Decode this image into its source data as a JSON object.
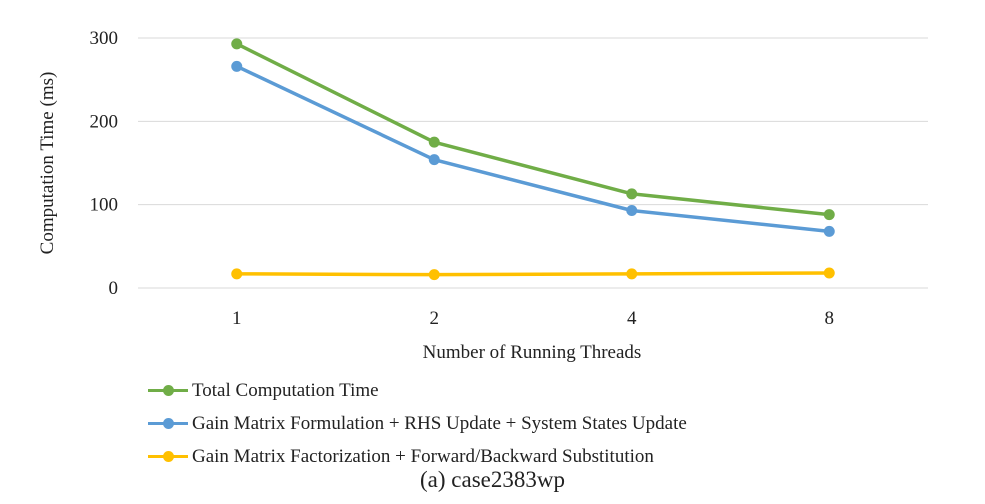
{
  "chart_data": {
    "type": "line",
    "categories": [
      "1",
      "2",
      "4",
      "8"
    ],
    "series": [
      {
        "name": "Total Computation Time",
        "values": [
          293,
          175,
          113,
          88
        ],
        "color": "#70ad47"
      },
      {
        "name": "Gain Matrix Formulation + RHS Update + System States Update",
        "values": [
          266,
          154,
          93,
          68
        ],
        "color": "#5b9bd5"
      },
      {
        "name": "Gain Matrix Factorization + Forward/Backward Substitution",
        "values": [
          17,
          16,
          17,
          18
        ],
        "color": "#ffc000"
      }
    ],
    "xlabel": "Number of Running Threads",
    "ylabel": "Computation Time (ms)",
    "ylim": [
      0,
      300
    ],
    "yticks": [
      0,
      100,
      200,
      300
    ],
    "grid": true,
    "legend_position": "bottom-left",
    "caption": "(a) case2383wp"
  }
}
